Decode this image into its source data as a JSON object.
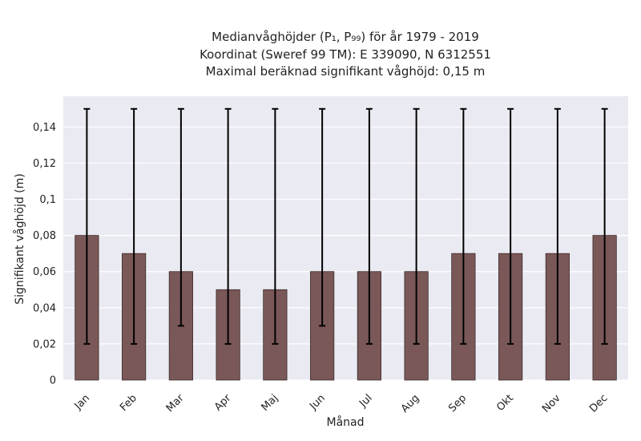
{
  "chart_data": {
    "type": "bar",
    "title_lines": [
      "Medianvåghöjder (P₁, P₉₉) för år 1979 - 2019",
      "Koordinat (Sweref 99 TM): E 339090, N 6312551",
      "Maximal beräknad signifikant våghöjd: 0,15 m"
    ],
    "xlabel": "Månad",
    "ylabel": "Signifikant våghöjd (m)",
    "categories": [
      "Jan",
      "Feb",
      "Mar",
      "Apr",
      "Maj",
      "Jun",
      "Jul",
      "Aug",
      "Sep",
      "Okt",
      "Nov",
      "Dec"
    ],
    "values": [
      0.08,
      0.07,
      0.06,
      0.05,
      0.05,
      0.06,
      0.06,
      0.06,
      0.07,
      0.07,
      0.07,
      0.08
    ],
    "error_low": [
      0.02,
      0.02,
      0.03,
      0.02,
      0.02,
      0.03,
      0.02,
      0.02,
      0.02,
      0.02,
      0.02,
      0.02
    ],
    "error_high": [
      0.15,
      0.15,
      0.15,
      0.15,
      0.15,
      0.15,
      0.15,
      0.15,
      0.15,
      0.15,
      0.15,
      0.15
    ],
    "ylim": [
      0,
      0.157
    ],
    "yticks": [
      0,
      0.02,
      0.04,
      0.06,
      0.08,
      0.1,
      0.12,
      0.14
    ],
    "ytick_labels": [
      "0",
      "0,02",
      "0,04",
      "0,06",
      "0,08",
      "0,1",
      "0,12",
      "0,14"
    ],
    "grid": true,
    "colors": {
      "bar": "#7a5858",
      "bar_edge": "#3a2828",
      "error": "#000000",
      "plot_bg": "#eaeaf2",
      "grid": "#ffffff"
    }
  }
}
